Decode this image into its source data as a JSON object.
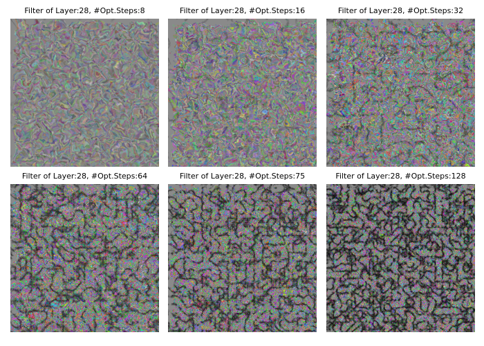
{
  "panels": [
    {
      "title": "Filter of Layer:28, #Opt.Steps:8",
      "intensity": 0.25
    },
    {
      "title": "Filter of Layer:28, #Opt.Steps:16",
      "intensity": 0.4
    },
    {
      "title": "Filter of Layer:28, #Opt.Steps:32",
      "intensity": 0.58
    },
    {
      "title": "Filter of Layer:28, #Opt.Steps:64",
      "intensity": 0.78
    },
    {
      "title": "Filter of Layer:28, #Opt.Steps:75",
      "intensity": 0.86
    },
    {
      "title": "Filter of Layer:28, #Opt.Steps:128",
      "intensity": 0.97
    }
  ]
}
